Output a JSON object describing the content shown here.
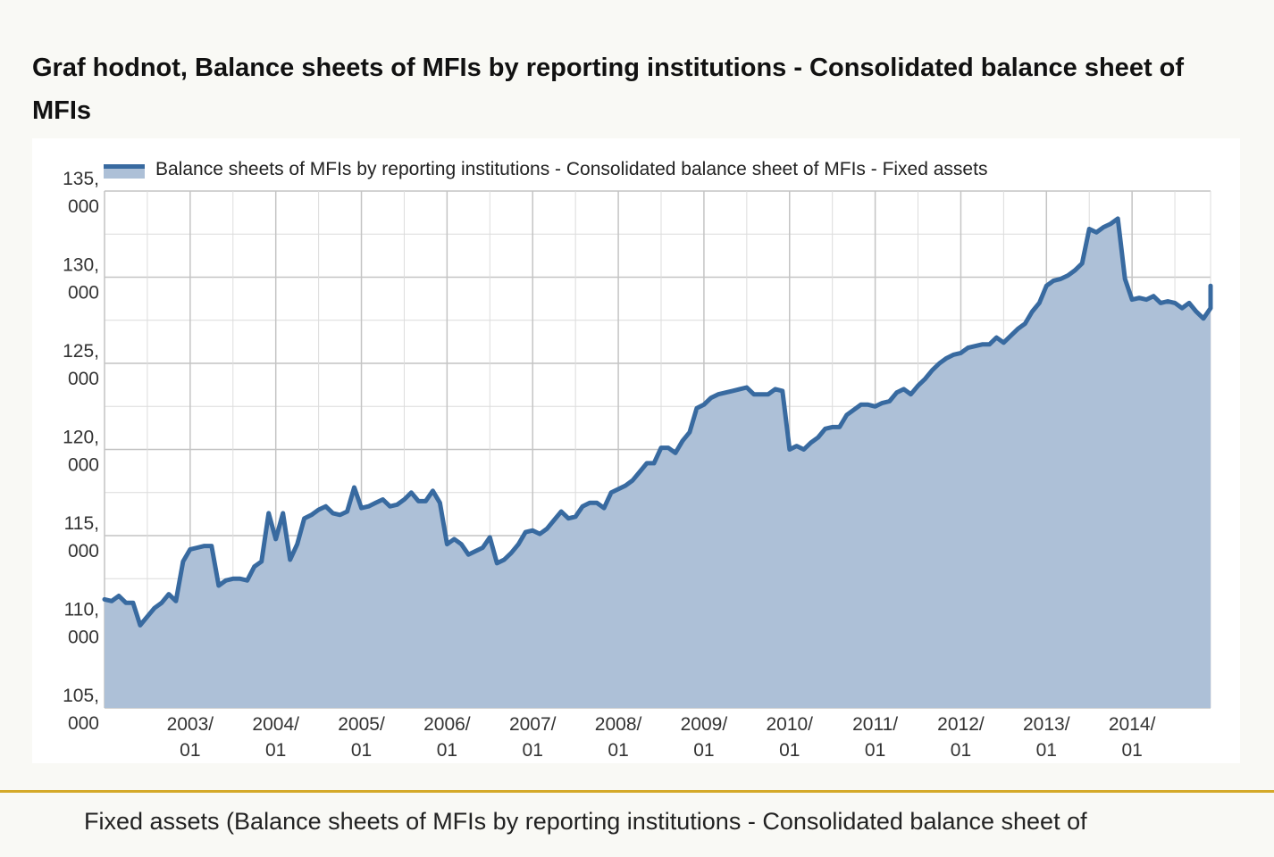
{
  "page": {
    "title": "Graf hodnot, Balance sheets of MFIs by reporting institutions - Consolidated balance sheet of MFIs",
    "caption": "Fixed assets (Balance sheets of MFIs by reporting institutions - Consolidated balance sheet of"
  },
  "colors": {
    "line": "#386aa0",
    "area": "#adc0d7",
    "grid": "#dcdcdc",
    "grid_major": "#c4c4c4",
    "divider": "#d4a929"
  },
  "chart_data": {
    "type": "area",
    "title": "",
    "xlabel": "",
    "ylabel": "",
    "ylim": [
      105000,
      135000
    ],
    "xlim": [
      "2002-01",
      "2014-12"
    ],
    "y_ticks": [
      {
        "value": 135000,
        "label": [
          "135,",
          "000"
        ]
      },
      {
        "value": 130000,
        "label": [
          "130,",
          "000"
        ]
      },
      {
        "value": 125000,
        "label": [
          "125,",
          "000"
        ]
      },
      {
        "value": 120000,
        "label": [
          "120,",
          "000"
        ]
      },
      {
        "value": 115000,
        "label": [
          "115,",
          "000"
        ]
      },
      {
        "value": 110000,
        "label": [
          "110,",
          "000"
        ]
      },
      {
        "value": 105000,
        "label": [
          "105,",
          "000"
        ]
      }
    ],
    "x_ticks": [
      {
        "value": "2003-01",
        "label": [
          "2003/",
          "01"
        ]
      },
      {
        "value": "2004-01",
        "label": [
          "2004/",
          "01"
        ]
      },
      {
        "value": "2005-01",
        "label": [
          "2005/",
          "01"
        ]
      },
      {
        "value": "2006-01",
        "label": [
          "2006/",
          "01"
        ]
      },
      {
        "value": "2007-01",
        "label": [
          "2007/",
          "01"
        ]
      },
      {
        "value": "2008-01",
        "label": [
          "2008/",
          "01"
        ]
      },
      {
        "value": "2009-01",
        "label": [
          "2009/",
          "01"
        ]
      },
      {
        "value": "2010-01",
        "label": [
          "2010/",
          "01"
        ]
      },
      {
        "value": "2011-01",
        "label": [
          "2011/",
          "01"
        ]
      },
      {
        "value": "2012-01",
        "label": [
          "2012/",
          "01"
        ]
      },
      {
        "value": "2013-01",
        "label": [
          "2013/",
          "01"
        ]
      },
      {
        "value": "2014-01",
        "label": [
          "2014/",
          "01"
        ]
      }
    ],
    "legend_position": "top",
    "grid": true,
    "series": [
      {
        "name": "Balance sheets of MFIs by reporting institutions - Consolidated balance sheet of MFIs - Fixed assets",
        "points": [
          [
            "2002-01",
            111300
          ],
          [
            "2002-02",
            111200
          ],
          [
            "2002-03",
            111500
          ],
          [
            "2002-04",
            111100
          ],
          [
            "2002-05",
            111100
          ],
          [
            "2002-06",
            109800
          ],
          [
            "2002-07",
            110300
          ],
          [
            "2002-08",
            110800
          ],
          [
            "2002-09",
            111100
          ],
          [
            "2002-10",
            111600
          ],
          [
            "2002-11",
            111200
          ],
          [
            "2002-12",
            113500
          ],
          [
            "2003-01",
            114200
          ],
          [
            "2003-02",
            114300
          ],
          [
            "2003-03",
            114400
          ],
          [
            "2003-04",
            114400
          ],
          [
            "2003-05",
            112100
          ],
          [
            "2003-06",
            112400
          ],
          [
            "2003-07",
            112500
          ],
          [
            "2003-08",
            112500
          ],
          [
            "2003-09",
            112400
          ],
          [
            "2003-10",
            113200
          ],
          [
            "2003-11",
            113500
          ],
          [
            "2003-12",
            116300
          ],
          [
            "2004-01",
            114800
          ],
          [
            "2004-02",
            116300
          ],
          [
            "2004-03",
            113600
          ],
          [
            "2004-04",
            114500
          ],
          [
            "2004-05",
            116000
          ],
          [
            "2004-06",
            116200
          ],
          [
            "2004-07",
            116500
          ],
          [
            "2004-08",
            116700
          ],
          [
            "2004-09",
            116300
          ],
          [
            "2004-10",
            116200
          ],
          [
            "2004-11",
            116400
          ],
          [
            "2004-12",
            117800
          ],
          [
            "2005-01",
            116600
          ],
          [
            "2005-02",
            116700
          ],
          [
            "2005-03",
            116900
          ],
          [
            "2005-04",
            117100
          ],
          [
            "2005-05",
            116700
          ],
          [
            "2005-06",
            116800
          ],
          [
            "2005-07",
            117100
          ],
          [
            "2005-08",
            117500
          ],
          [
            "2005-09",
            117000
          ],
          [
            "2005-10",
            117000
          ],
          [
            "2005-11",
            117600
          ],
          [
            "2005-12",
            116900
          ],
          [
            "2006-01",
            114500
          ],
          [
            "2006-02",
            114800
          ],
          [
            "2006-03",
            114500
          ],
          [
            "2006-04",
            113900
          ],
          [
            "2006-05",
            114100
          ],
          [
            "2006-06",
            114300
          ],
          [
            "2006-07",
            114900
          ],
          [
            "2006-08",
            113400
          ],
          [
            "2006-09",
            113600
          ],
          [
            "2006-10",
            114000
          ],
          [
            "2006-11",
            114500
          ],
          [
            "2006-12",
            115200
          ],
          [
            "2007-01",
            115300
          ],
          [
            "2007-02",
            115100
          ],
          [
            "2007-03",
            115400
          ],
          [
            "2007-04",
            115900
          ],
          [
            "2007-05",
            116400
          ],
          [
            "2007-06",
            116000
          ],
          [
            "2007-07",
            116100
          ],
          [
            "2007-08",
            116700
          ],
          [
            "2007-09",
            116900
          ],
          [
            "2007-10",
            116900
          ],
          [
            "2007-11",
            116600
          ],
          [
            "2007-12",
            117500
          ],
          [
            "2008-01",
            117700
          ],
          [
            "2008-02",
            117900
          ],
          [
            "2008-03",
            118200
          ],
          [
            "2008-04",
            118700
          ],
          [
            "2008-05",
            119200
          ],
          [
            "2008-06",
            119200
          ],
          [
            "2008-07",
            120100
          ],
          [
            "2008-08",
            120100
          ],
          [
            "2008-09",
            119800
          ],
          [
            "2008-10",
            120500
          ],
          [
            "2008-11",
            121000
          ],
          [
            "2008-12",
            122400
          ],
          [
            "2009-01",
            122600
          ],
          [
            "2009-02",
            123000
          ],
          [
            "2009-03",
            123200
          ],
          [
            "2009-04",
            123300
          ],
          [
            "2009-05",
            123400
          ],
          [
            "2009-06",
            123500
          ],
          [
            "2009-07",
            123600
          ],
          [
            "2009-08",
            123200
          ],
          [
            "2009-09",
            123200
          ],
          [
            "2009-10",
            123200
          ],
          [
            "2009-11",
            123500
          ],
          [
            "2009-12",
            123400
          ],
          [
            "2010-01",
            120000
          ],
          [
            "2010-02",
            120200
          ],
          [
            "2010-03",
            120000
          ],
          [
            "2010-04",
            120400
          ],
          [
            "2010-05",
            120700
          ],
          [
            "2010-06",
            121200
          ],
          [
            "2010-07",
            121300
          ],
          [
            "2010-08",
            121300
          ],
          [
            "2010-09",
            122000
          ],
          [
            "2010-10",
            122300
          ],
          [
            "2010-11",
            122600
          ],
          [
            "2010-12",
            122600
          ],
          [
            "2011-01",
            122500
          ],
          [
            "2011-02",
            122700
          ],
          [
            "2011-03",
            122800
          ],
          [
            "2011-04",
            123300
          ],
          [
            "2011-05",
            123500
          ],
          [
            "2011-06",
            123200
          ],
          [
            "2011-07",
            123700
          ],
          [
            "2011-08",
            124100
          ],
          [
            "2011-09",
            124600
          ],
          [
            "2011-10",
            125000
          ],
          [
            "2011-11",
            125300
          ],
          [
            "2011-12",
            125500
          ],
          [
            "2012-01",
            125600
          ],
          [
            "2012-02",
            125900
          ],
          [
            "2012-03",
            126000
          ],
          [
            "2012-04",
            126100
          ],
          [
            "2012-05",
            126100
          ],
          [
            "2012-06",
            126500
          ],
          [
            "2012-07",
            126200
          ],
          [
            "2012-08",
            126600
          ],
          [
            "2012-09",
            127000
          ],
          [
            "2012-10",
            127300
          ],
          [
            "2012-11",
            128000
          ],
          [
            "2012-12",
            128500
          ],
          [
            "2013-01",
            129500
          ],
          [
            "2013-02",
            129800
          ],
          [
            "2013-03",
            129900
          ],
          [
            "2013-04",
            130100
          ],
          [
            "2013-05",
            130400
          ],
          [
            "2013-06",
            130800
          ],
          [
            "2013-07",
            132800
          ],
          [
            "2013-08",
            132600
          ],
          [
            "2013-09",
            132900
          ],
          [
            "2013-10",
            133100
          ],
          [
            "2013-11",
            133400
          ],
          [
            "2013-12",
            129900
          ],
          [
            "2014-01",
            128700
          ],
          [
            "2014-02",
            128800
          ],
          [
            "2014-03",
            128700
          ],
          [
            "2014-04",
            128900
          ],
          [
            "2014-05",
            128500
          ],
          [
            "2014-06",
            128600
          ],
          [
            "2014-07",
            128500
          ],
          [
            "2014-08",
            128200
          ],
          [
            "2014-09",
            128500
          ],
          [
            "2014-10",
            128000
          ],
          [
            "2014-11",
            127600
          ],
          [
            "2014-12",
            128200
          ],
          [
            "2015-01",
            129500
          ]
        ]
      }
    ]
  }
}
